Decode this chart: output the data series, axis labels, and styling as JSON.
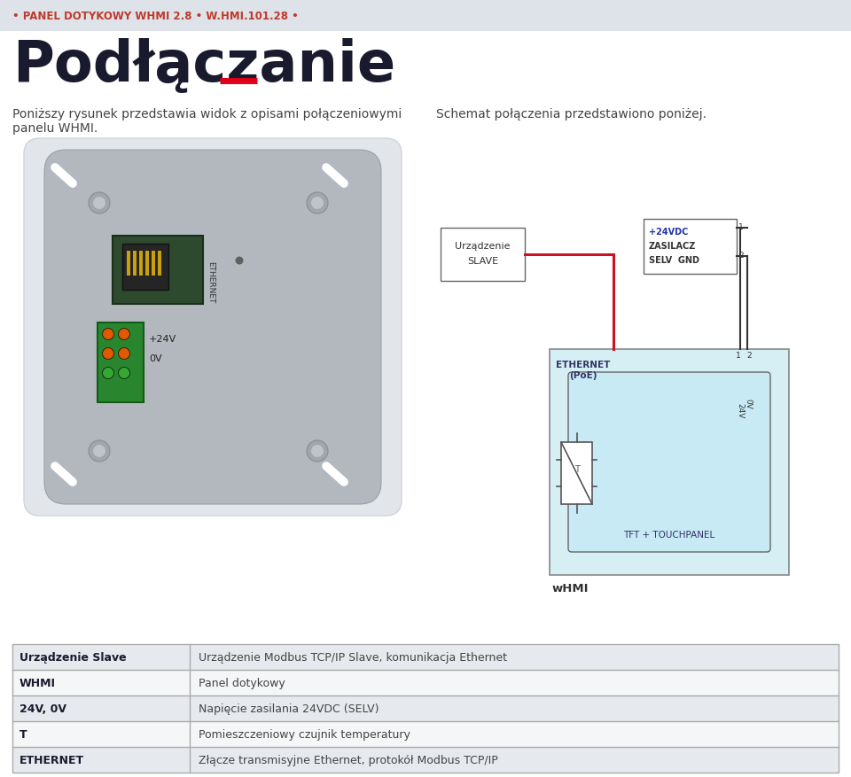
{
  "bg_color": "#f5f5f5",
  "white_bg": "#ffffff",
  "header_bg": "#dde3e8",
  "header_text": "• PANEL DOTYKOWY WHMI 2.8 • W.HMI.101.28 •",
  "header_text_color": "#c0392b",
  "title": "Podłączanie",
  "title_color": "#1a1a2e",
  "dash_color": "#e0001a",
  "subtitle1": "Poniższy rysunek przedstawia widok z opisami połączeniowymi",
  "subtitle2": "panelu WHMI.",
  "subtitle_right": "Schemat połączenia przedstawiono poniżej.",
  "table_rows": [
    [
      "Urządzenie Slave",
      "Urządzenie Modbus TCP/IP Slave, komunikacja Ethernet"
    ],
    [
      "WHMI",
      "Panel dotykowy"
    ],
    [
      "24V, 0V",
      "Napięcie zasilania 24VDC (SELV)"
    ],
    [
      "T",
      "Pomieszczeniowy czujnik temperatury"
    ],
    [
      "ETHERNET",
      "Złącze transmisyjne Ethernet, protokół Modbus TCP/IP"
    ]
  ],
  "device_bg": "#b2b8be",
  "device_outer": "#e2e6ea",
  "diagram_box_bg": "#d6eff5",
  "line_red": "#cc1122",
  "line_dark": "#222222",
  "blue_text": "#2233aa",
  "dark_text": "#222233"
}
